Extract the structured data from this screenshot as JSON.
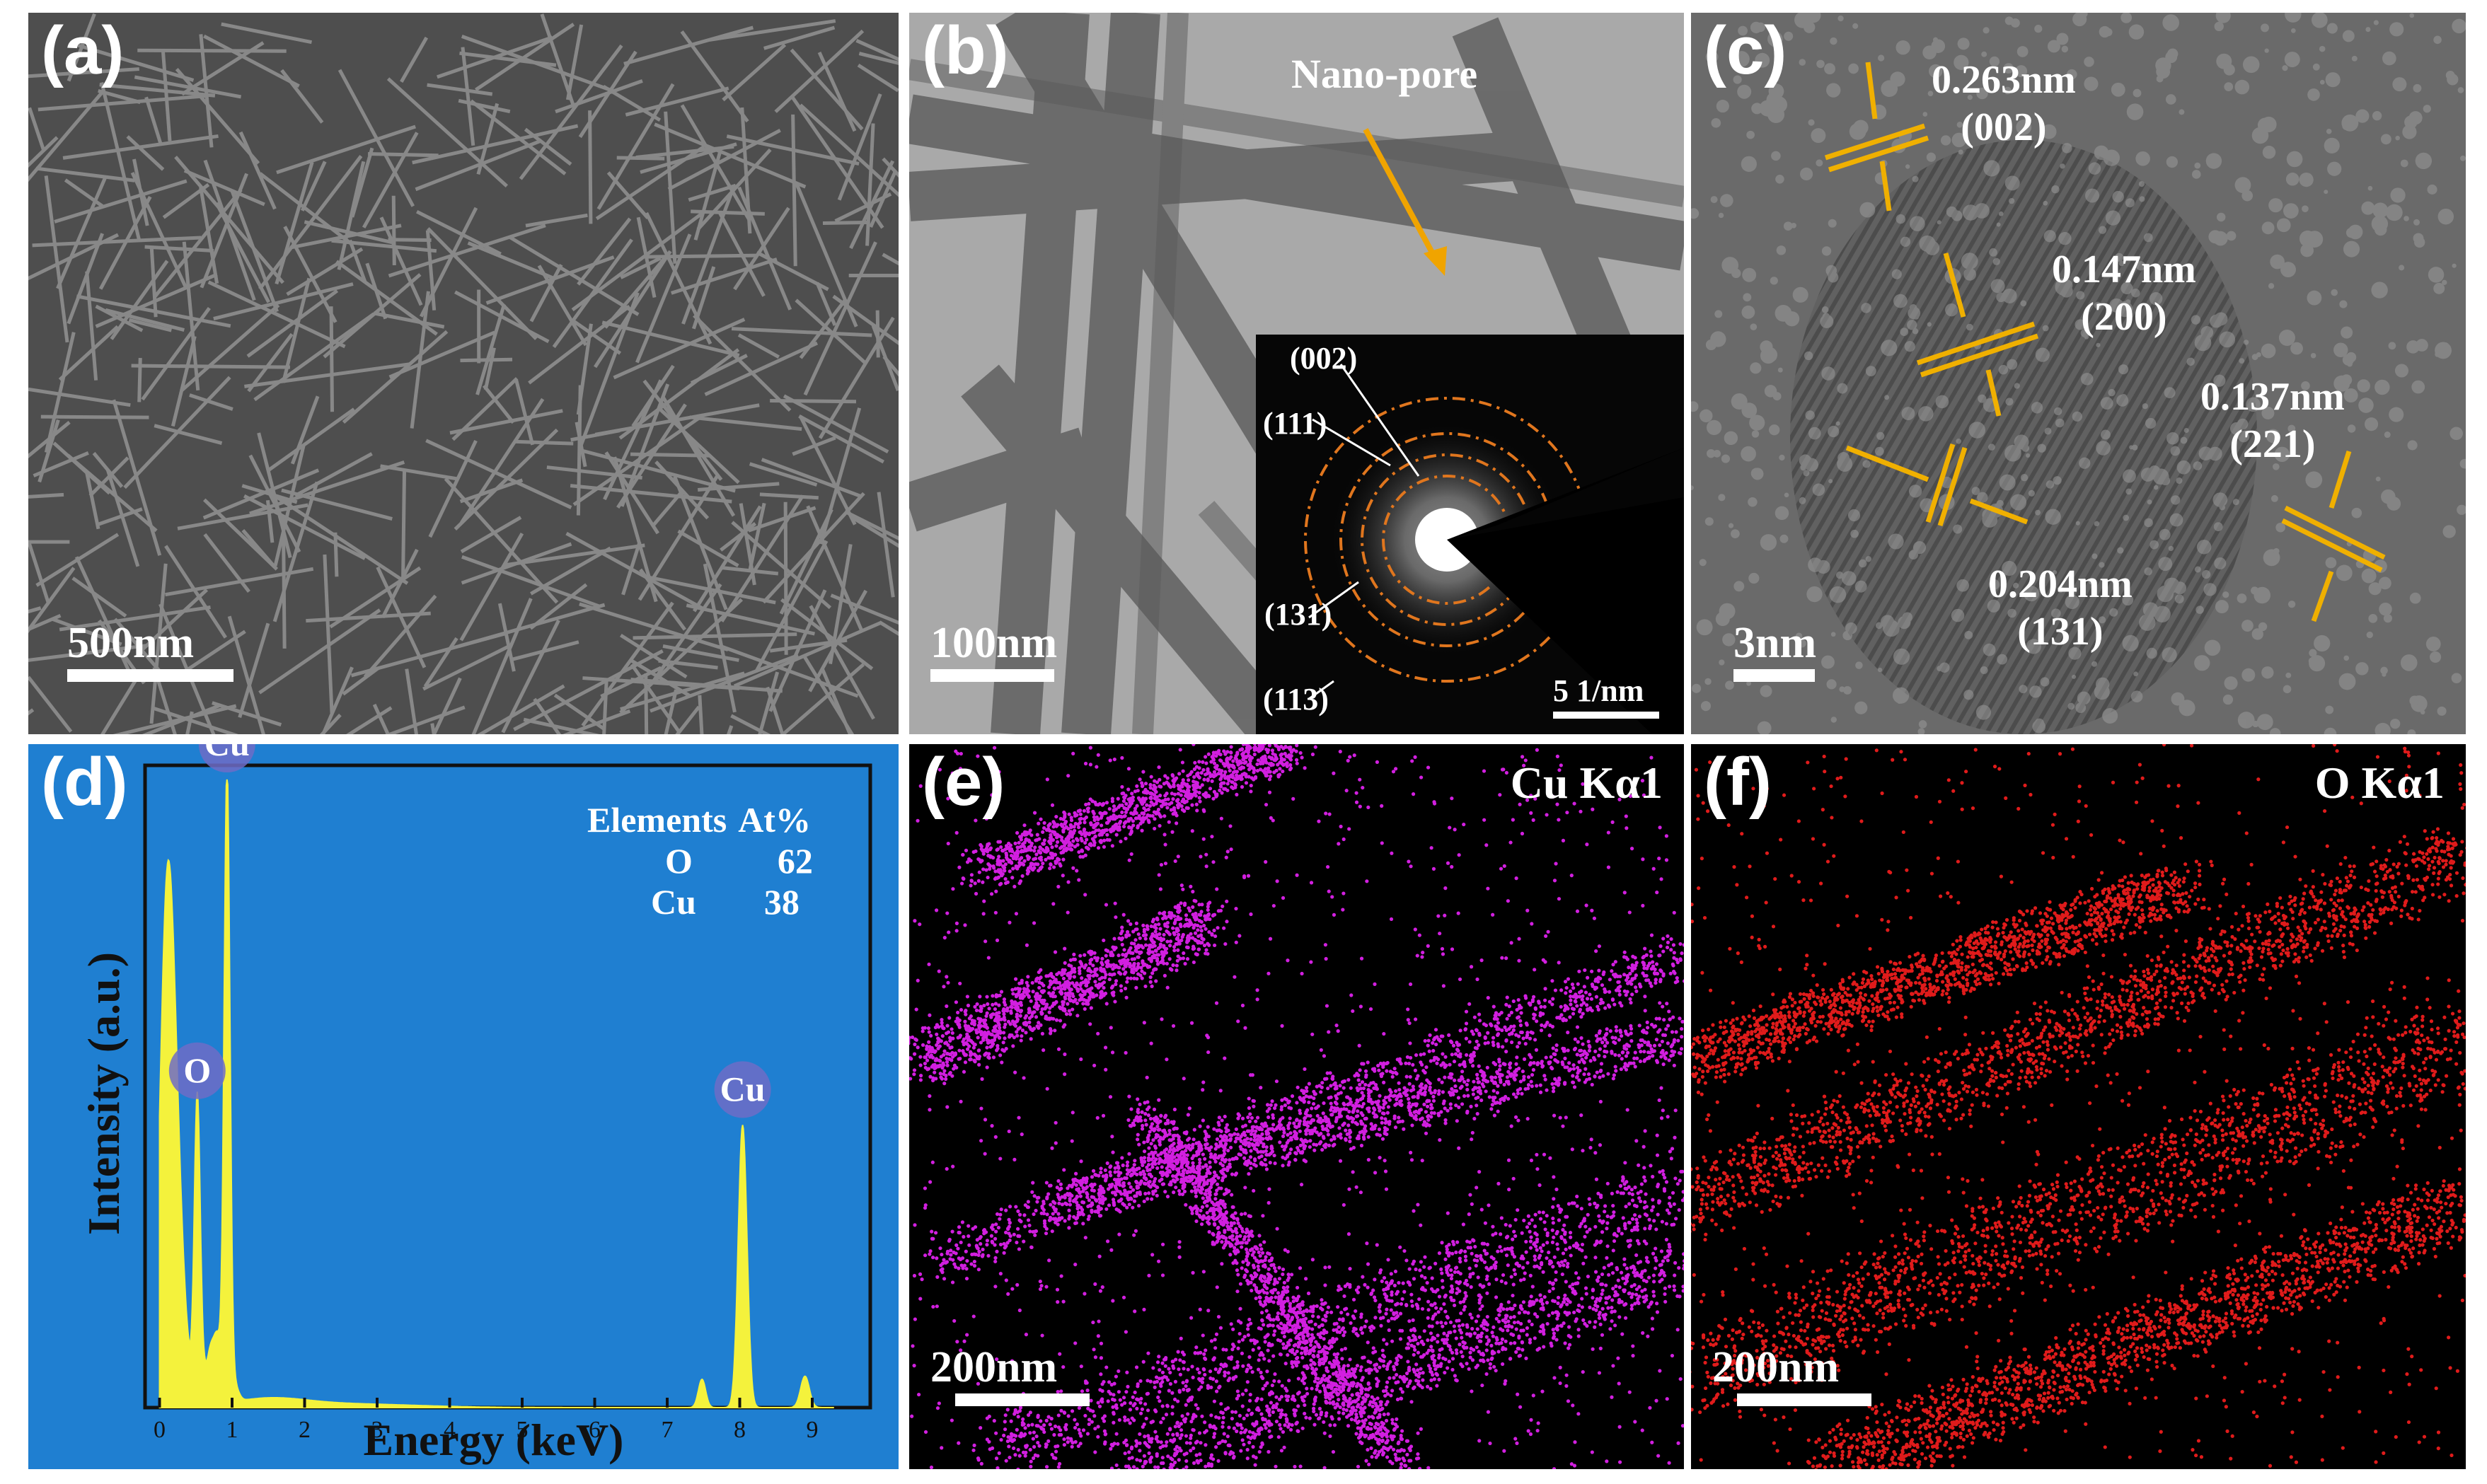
{
  "panels": {
    "a": {
      "label": "(a)",
      "scale": "500nm"
    },
    "b": {
      "label": "(b)",
      "scale": "100nm",
      "pore_label": "Nano-pore",
      "inset_scale": "5 1/nm",
      "rings": [
        "(002)",
        "(111)",
        "(131)",
        "(113)"
      ]
    },
    "c": {
      "label": "(c)",
      "scale": "3nm",
      "fringes": [
        {
          "d": "0.263nm",
          "hkl": "(002)"
        },
        {
          "d": "0.147nm",
          "hkl": "(200)"
        },
        {
          "d": "0.137nm",
          "hkl": "(221)"
        },
        {
          "d": "0.204nm",
          "hkl": "(131)"
        }
      ]
    },
    "d": {
      "label": "(d)",
      "table": {
        "header": [
          "Elements",
          "At%"
        ],
        "rows": [
          [
            "O",
            "62"
          ],
          [
            "Cu",
            "38"
          ]
        ]
      },
      "peak_labels": {
        "cu_low": "Cu",
        "o": "O",
        "cu_high": "Cu"
      }
    },
    "e": {
      "label": "(e)",
      "element": "Cu Kα1",
      "scale": "200nm",
      "dot_color": "#d21fe0"
    },
    "f": {
      "label": "(f)",
      "element": "O Kα1",
      "scale": "200nm",
      "dot_color": "#e01b1b"
    }
  },
  "chart_data": {
    "type": "line",
    "title": "",
    "xlabel": "Energy (keV)",
    "ylabel": "Intensity (a.u.)",
    "xlim": [
      -0.2,
      9.8
    ],
    "ylim": [
      0,
      1.0
    ],
    "xticks": [
      "0",
      "1",
      "2",
      "3",
      "4",
      "5",
      "6",
      "7",
      "8",
      "9"
    ],
    "series": [
      {
        "x": [
          0.05,
          0.1,
          0.18,
          0.28,
          0.4,
          0.52,
          0.6,
          0.7,
          0.8,
          0.93,
          1.02,
          1.5,
          2.5,
          7.48,
          8.04,
          8.9
        ],
        "y": [
          0.02,
          0.72,
          0.18,
          0.16,
          0.04,
          0.48,
          0.04,
          0.08,
          0.1,
          1.0,
          0.03,
          0.012,
          0.006,
          0.045,
          0.45,
          0.05
        ]
      }
    ],
    "peaks": [
      {
        "element": "O",
        "x": 0.52,
        "y": 0.48
      },
      {
        "element": "Cu",
        "x": 0.93,
        "y": 1.0
      },
      {
        "element": "Cu",
        "x": 8.04,
        "y": 0.45
      }
    ],
    "fill_color": "#f4f23c",
    "background": "#1f7fd1"
  }
}
